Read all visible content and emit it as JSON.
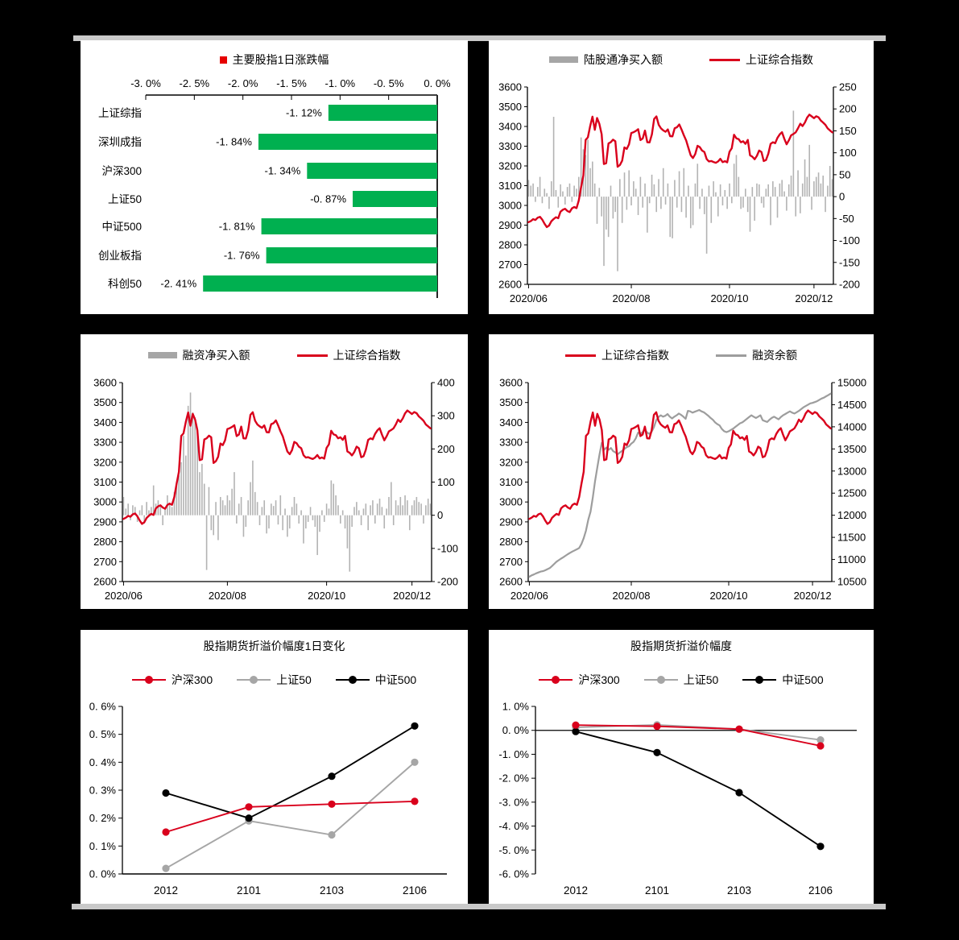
{
  "page": {
    "background": "#000000",
    "top_rule_color": "#c9c9c9",
    "bottom_rule_color": "#c9c9c9"
  },
  "shared": {
    "sse_close": [
      2915,
      2921,
      2930,
      2926,
      2938,
      2942,
      2928,
      2907,
      2890,
      2898,
      2920,
      2931,
      2940,
      2935,
      2968,
      2978,
      2983,
      2972,
      2966,
      2985,
      2992,
      2986,
      3025,
      3091,
      3152,
      3332,
      3345,
      3403,
      3450,
      3383,
      3443,
      3414,
      3361,
      3210,
      3214,
      3314,
      3320,
      3333,
      3325,
      3196,
      3205,
      3227,
      3294,
      3286,
      3310,
      3367,
      3371,
      3377,
      3386,
      3331,
      3339,
      3379,
      3320,
      3319,
      3360,
      3438,
      3451,
      3408,
      3390,
      3380,
      3373,
      3385,
      3351,
      3350,
      3391,
      3396,
      3410,
      3385,
      3355,
      3330,
      3292,
      3254,
      3240,
      3260,
      3302,
      3295,
      3278,
      3270,
      3235,
      3223,
      3225,
      3220,
      3216,
      3223,
      3236,
      3219,
      3224,
      3218,
      3272,
      3290,
      3358,
      3340,
      3336,
      3320,
      3325,
      3312,
      3332,
      3254,
      3247,
      3234,
      3251,
      3278,
      3270,
      3225,
      3230,
      3262,
      3312,
      3320,
      3315,
      3342,
      3360,
      3371,
      3338,
      3310,
      3330,
      3355,
      3362,
      3370,
      3390,
      3414,
      3402,
      3420,
      3445,
      3460,
      3451,
      3442,
      3452,
      3446,
      3430,
      3420,
      3408,
      3390,
      3380,
      3370
    ]
  },
  "chart_data": [
    {
      "id": "main-index-daily-change",
      "type": "hbar",
      "title": "主要股指1日涨跌幅",
      "title_marker_color": "#e60000",
      "bar_color": "#00b050",
      "categories": [
        "上证综指",
        "深圳成指",
        "沪深300",
        "上证50",
        "中证500",
        "创业板指",
        "科创50"
      ],
      "values": [
        -1.12,
        -1.84,
        -1.34,
        -0.87,
        -1.81,
        -1.76,
        -2.41
      ],
      "value_labels": [
        "-1. 12%",
        "-1. 84%",
        "-1. 34%",
        "-0. 87%",
        "-1. 81%",
        "-1. 76%",
        "-2. 41%"
      ],
      "xlim": [
        -3.0,
        0.0
      ],
      "x_ticks": [
        "-3. 0%",
        "-2. 5%",
        "-2. 0%",
        "-1. 5%",
        "-1. 0%",
        "-0. 5%",
        "0. 0%"
      ]
    },
    {
      "id": "northbound-netbuy-vs-sse",
      "type": "dual",
      "legend": [
        {
          "label": "陆股通净买入额",
          "color": "#a6a6a6",
          "swatch": "bar"
        },
        {
          "label": "上证综合指数",
          "color": "#d9001c",
          "swatch": "line"
        }
      ],
      "left_axis": {
        "min": 2600,
        "max": 3600,
        "step": 100,
        "ticks": [
          "3600",
          "3500",
          "3400",
          "3300",
          "3200",
          "3100",
          "3000",
          "2900",
          "2800",
          "2700",
          "2600"
        ]
      },
      "right_axis": {
        "min": -200,
        "max": 250,
        "step": 50,
        "ticks": [
          "250",
          "200",
          "150",
          "100",
          "50",
          "0",
          "-50",
          "-100",
          "-150",
          "-200"
        ]
      },
      "x_ticks": [
        "2020/06",
        "2020/08",
        "2020/10",
        "2020/12"
      ],
      "x_tick_indices": [
        0,
        45,
        88,
        125
      ],
      "bar_series": {
        "name": "陆股通净买入额",
        "color": "#b3b3b3",
        "values": [
          38,
          25,
          30,
          -12,
          22,
          45,
          -15,
          18,
          8,
          -28,
          35,
          182,
          15,
          -25,
          28,
          12,
          -18,
          22,
          30,
          -12,
          25,
          18,
          45,
          135,
          108,
          95,
          130,
          65,
          80,
          30,
          -62,
          20,
          -45,
          -158,
          -75,
          -92,
          25,
          -50,
          -35,
          -170,
          40,
          -60,
          55,
          -30,
          60,
          -20,
          35,
          18,
          -42,
          45,
          -25,
          30,
          -82,
          -15,
          50,
          28,
          -35,
          40,
          -28,
          65,
          -18,
          30,
          -92,
          -95,
          38,
          -25,
          58,
          -35,
          65,
          -48,
          25,
          -72,
          -65,
          30,
          75,
          -28,
          18,
          -40,
          -130,
          25,
          -60,
          35,
          10,
          -45,
          28,
          -20,
          15,
          -28,
          30,
          -15,
          75,
          95,
          45,
          -28,
          -25,
          18,
          -35,
          -80,
          22,
          -55,
          30,
          28,
          -15,
          -25,
          18,
          28,
          -65,
          35,
          22,
          -48,
          30,
          38,
          12,
          -32,
          28,
          48,
          196,
          -45,
          60,
          -38,
          30,
          85,
          45,
          118,
          -30,
          35,
          45,
          55,
          30,
          48,
          -35,
          25,
          70,
          40
        ]
      },
      "line_series": [
        {
          "name": "上证综合指数",
          "color": "#d9001c",
          "axis": "left",
          "width": 2.4,
          "values_ref": "shared.sse_close"
        }
      ]
    },
    {
      "id": "margin-netbuy-vs-sse",
      "type": "dual",
      "legend": [
        {
          "label": "融资净买入额",
          "color": "#a6a6a6",
          "swatch": "bar"
        },
        {
          "label": "上证综合指数",
          "color": "#d9001c",
          "swatch": "line"
        }
      ],
      "left_axis": {
        "min": 2600,
        "max": 3600,
        "step": 100,
        "ticks": [
          "3600",
          "3500",
          "3400",
          "3300",
          "3200",
          "3100",
          "3000",
          "2900",
          "2800",
          "2700",
          "2600"
        ]
      },
      "right_axis": {
        "min": -200,
        "max": 400,
        "step": 100,
        "ticks": [
          "400",
          "300",
          "200",
          "100",
          "0",
          "-100",
          "-200"
        ]
      },
      "x_ticks": [
        "2020/06",
        "2020/08",
        "2020/10",
        "2020/12"
      ],
      "x_tick_indices": [
        0,
        45,
        88,
        125
      ],
      "bar_series": {
        "name": "融资净买入额",
        "color": "#b3b3b3",
        "values": [
          55,
          20,
          35,
          -15,
          30,
          25,
          -20,
          15,
          30,
          -25,
          40,
          15,
          25,
          90,
          35,
          45,
          28,
          -30,
          20,
          60,
          35,
          25,
          70,
          95,
          120,
          160,
          240,
          180,
          330,
          370,
          310,
          295,
          260,
          130,
          155,
          95,
          -165,
          85,
          -45,
          -60,
          40,
          -75,
          55,
          45,
          30,
          60,
          45,
          80,
          130,
          -25,
          35,
          55,
          -65,
          -35,
          45,
          100,
          165,
          70,
          40,
          -30,
          25,
          45,
          -55,
          -40,
          35,
          28,
          45,
          -28,
          60,
          -45,
          20,
          -65,
          -40,
          25,
          55,
          35,
          -25,
          15,
          -85,
          -40,
          -20,
          25,
          -15,
          -35,
          -120,
          -50,
          15,
          -20,
          35,
          20,
          105,
          95,
          60,
          30,
          -25,
          15,
          -40,
          -100,
          -170,
          -35,
          25,
          40,
          15,
          -30,
          20,
          35,
          -45,
          30,
          45,
          -25,
          35,
          50,
          25,
          -40,
          20,
          55,
          100,
          -30,
          45,
          30,
          55,
          30,
          60,
          45,
          -45,
          30,
          45,
          55,
          40,
          35,
          -25,
          30,
          50,
          35
        ]
      },
      "line_series": [
        {
          "name": "上证综合指数",
          "color": "#d9001c",
          "axis": "left",
          "width": 2.4,
          "values_ref": "shared.sse_close"
        }
      ]
    },
    {
      "id": "sse-vs-margin-balance",
      "type": "dual",
      "legend": [
        {
          "label": "上证综合指数",
          "color": "#d9001c",
          "swatch": "line"
        },
        {
          "label": "融资余额",
          "color": "#9d9d9d",
          "swatch": "line"
        }
      ],
      "left_axis": {
        "min": 2600,
        "max": 3600,
        "step": 100,
        "ticks": [
          "3600",
          "3500",
          "3400",
          "3300",
          "3200",
          "3100",
          "3000",
          "2900",
          "2800",
          "2700",
          "2600"
        ]
      },
      "right_axis": {
        "min": 10500,
        "max": 15000,
        "step": 500,
        "ticks": [
          "15000",
          "14500",
          "14000",
          "13500",
          "13000",
          "12500",
          "12000",
          "11500",
          "11000",
          "10500"
        ]
      },
      "x_ticks": [
        "2020/06",
        "2020/08",
        "2020/10",
        "2020/12"
      ],
      "x_tick_indices": [
        0,
        45,
        88,
        125
      ],
      "line_series": [
        {
          "name": "融资余额",
          "color": "#9d9d9d",
          "axis": "right",
          "width": 2.2,
          "values": [
            10610,
            10640,
            10660,
            10685,
            10705,
            10725,
            10735,
            10755,
            10780,
            10805,
            10850,
            10900,
            10950,
            10985,
            11020,
            11050,
            11085,
            11120,
            11150,
            11180,
            11205,
            11230,
            11260,
            11350,
            11480,
            11650,
            11900,
            12080,
            12400,
            12770,
            13080,
            13380,
            13640,
            13480,
            13530,
            13480,
            13520,
            13450,
            13420,
            13380,
            13420,
            13460,
            13500,
            13540,
            13560,
            13620,
            13660,
            13740,
            13870,
            13840,
            13880,
            13940,
            13870,
            13840,
            13890,
            13990,
            14150,
            14220,
            14260,
            14230,
            14250,
            14290,
            14230,
            14190,
            14230,
            14260,
            14300,
            14270,
            14230,
            14180,
            14360,
            14350,
            14320,
            14340,
            14360,
            14380,
            14350,
            14330,
            14290,
            14250,
            14200,
            14160,
            14100,
            14060,
            14030,
            13950,
            13900,
            13880,
            13900,
            13930,
            13960,
            14000,
            14040,
            14080,
            14100,
            14140,
            14180,
            14220,
            14260,
            14230,
            14200,
            14230,
            14260,
            14150,
            14130,
            14110,
            14160,
            14200,
            14230,
            14200,
            14170,
            14220,
            14260,
            14290,
            14320,
            14350,
            14320,
            14300,
            14330,
            14360,
            14400,
            14440,
            14470,
            14500,
            14530,
            14540,
            14560,
            14580,
            14610,
            14640,
            14660,
            14690,
            14720,
            14750
          ]
        },
        {
          "name": "上证综合指数",
          "color": "#d9001c",
          "axis": "left",
          "width": 2.4,
          "values_ref": "shared.sse_close"
        }
      ]
    },
    {
      "id": "futures-premium-1d-change",
      "type": "multiline",
      "title": "股指期货折溢价幅度1日变化",
      "legend": [
        {
          "label": "沪深300",
          "color": "#d9001c"
        },
        {
          "label": "上证50",
          "color": "#a6a6a6"
        },
        {
          "label": "中证500",
          "color": "#000000"
        }
      ],
      "categories": [
        "2012",
        "2101",
        "2103",
        "2106"
      ],
      "ylim": [
        0.0,
        0.6
      ],
      "ystep": 0.1,
      "y_ticks": [
        "0. 6%",
        "0. 5%",
        "0. 4%",
        "0. 3%",
        "0. 2%",
        "0. 1%",
        "0. 0%"
      ],
      "baseline": "bottom",
      "series": [
        {
          "name": "上证50",
          "color": "#a6a6a6",
          "values": [
            0.02,
            0.19,
            0.14,
            0.4
          ]
        },
        {
          "name": "中证500",
          "color": "#000000",
          "values": [
            0.29,
            0.2,
            0.35,
            0.53
          ]
        },
        {
          "name": "沪深300",
          "color": "#d9001c",
          "values": [
            0.15,
            0.24,
            0.25,
            0.26
          ]
        }
      ]
    },
    {
      "id": "futures-premium-level",
      "type": "multiline",
      "title": "股指期货折溢价幅度",
      "legend": [
        {
          "label": "沪深300",
          "color": "#d9001c"
        },
        {
          "label": "上证50",
          "color": "#a6a6a6"
        },
        {
          "label": "中证500",
          "color": "#000000"
        }
      ],
      "categories": [
        "2012",
        "2101",
        "2103",
        "2106"
      ],
      "ylim": [
        -6.0,
        1.0
      ],
      "ystep": 1.0,
      "y_ticks": [
        "1. 0%",
        "0. 0%",
        "-1. 0%",
        "-2. 0%",
        "-3. 0%",
        "-4. 0%",
        "-5. 0%",
        "-6. 0%"
      ],
      "baseline": "zero",
      "series": [
        {
          "name": "上证50",
          "color": "#a6a6a6",
          "values": [
            0.12,
            0.23,
            0.05,
            -0.4
          ]
        },
        {
          "name": "中证500",
          "color": "#000000",
          "values": [
            -0.05,
            -0.93,
            -2.6,
            -4.85
          ]
        },
        {
          "name": "沪深300",
          "color": "#d9001c",
          "values": [
            0.22,
            0.17,
            0.05,
            -0.65
          ]
        }
      ]
    }
  ]
}
